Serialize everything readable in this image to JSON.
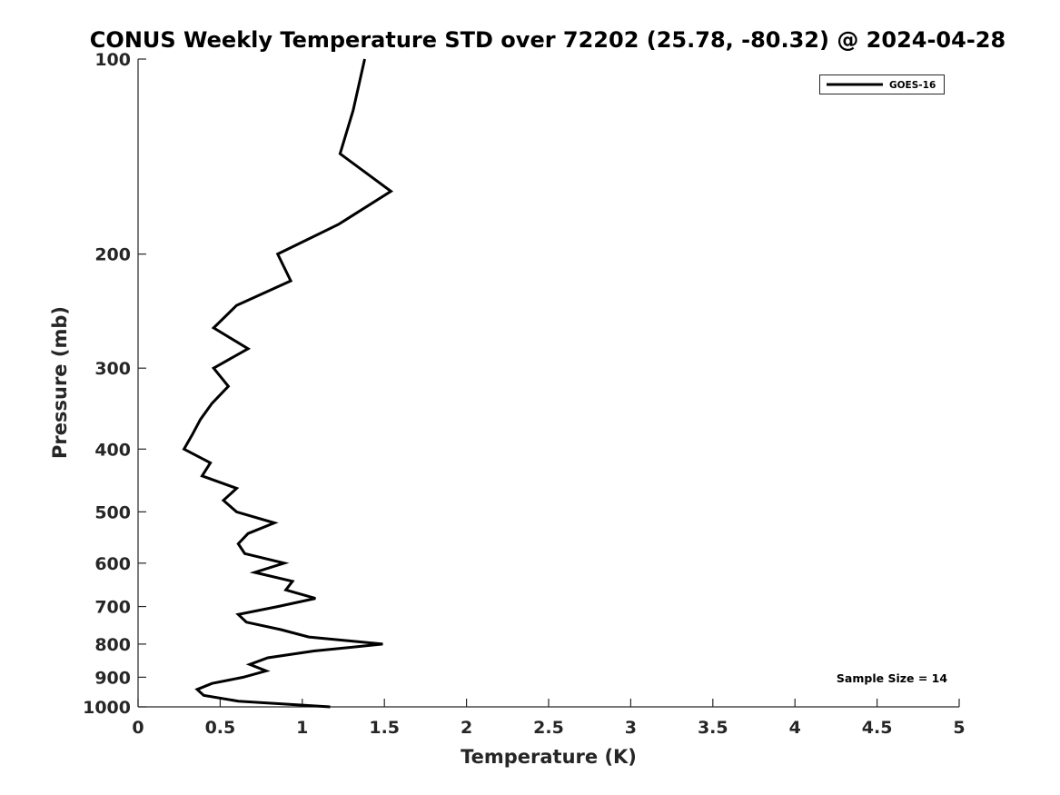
{
  "chart_data": {
    "type": "line",
    "title": "CONUS Weekly Temperature STD over 72202 (25.78, -80.32) @ 2024-04-28",
    "xlabel": "Temperature (K)",
    "ylabel": "Pressure (mb)",
    "xlim": [
      0,
      5
    ],
    "ylim": [
      100,
      1000
    ],
    "yscale": "log",
    "y_reversed": true,
    "grid": false,
    "xticks": [
      0,
      0.5,
      1,
      1.5,
      2,
      2.5,
      3,
      3.5,
      4,
      4.5,
      5
    ],
    "xtick_labels": [
      "0",
      "0.5",
      "1",
      "1.5",
      "2",
      "2.5",
      "3",
      "3.5",
      "4",
      "4.5",
      "5"
    ],
    "yticks": [
      100,
      200,
      300,
      400,
      500,
      600,
      700,
      800,
      900,
      1000
    ],
    "ytick_labels": [
      "100",
      "200",
      "300",
      "400",
      "500",
      "600",
      "700",
      "800",
      "900",
      "1000"
    ],
    "legend": {
      "placement": "top-right",
      "entries": [
        "GOES-16"
      ]
    },
    "annotation": "Sample Size = 14",
    "series": [
      {
        "name": "GOES-16",
        "color": "#000000",
        "pressure": [
          100,
          120,
          140,
          160,
          180,
          200,
          220,
          240,
          260,
          280,
          300,
          320,
          340,
          360,
          380,
          400,
          420,
          440,
          460,
          480,
          500,
          520,
          540,
          560,
          580,
          600,
          620,
          640,
          660,
          680,
          700,
          720,
          740,
          760,
          780,
          800,
          820,
          840,
          860,
          880,
          900,
          920,
          940,
          960,
          980,
          1000
        ],
        "temperature_std": [
          1.38,
          1.31,
          1.23,
          1.54,
          1.22,
          0.85,
          0.93,
          0.6,
          0.46,
          0.67,
          0.46,
          0.55,
          0.45,
          0.38,
          0.33,
          0.28,
          0.44,
          0.39,
          0.6,
          0.52,
          0.6,
          0.83,
          0.67,
          0.61,
          0.65,
          0.89,
          0.71,
          0.94,
          0.9,
          1.08,
          0.85,
          0.61,
          0.66,
          0.87,
          1.04,
          1.49,
          1.07,
          0.79,
          0.68,
          0.78,
          0.64,
          0.45,
          0.36,
          0.4,
          0.61,
          1.17
        ]
      }
    ]
  }
}
